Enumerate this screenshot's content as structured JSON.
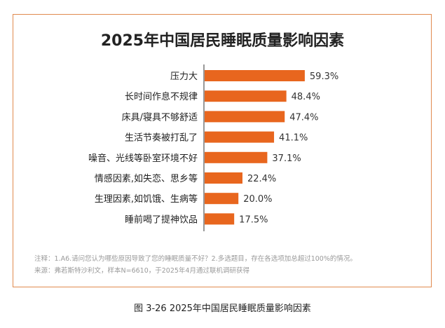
{
  "chart_data": {
    "type": "bar",
    "orientation": "horizontal",
    "title": "2025年中国居民睡眠质量影响因素",
    "categories": [
      "压力大",
      "长时间作息不规律",
      "床具/寝具不够舒适",
      "生活节奏被打乱了",
      "噪音、光线等卧室环境不好",
      "情感因素,如失恋、思乡等",
      "生理因素,如饥饿、生病等",
      "睡前喝了提神饮品"
    ],
    "values": [
      59.3,
      48.4,
      47.4,
      41.1,
      37.1,
      22.4,
      20.0,
      17.5
    ],
    "value_labels": [
      "59.3%",
      "48.4%",
      "47.4%",
      "41.1%",
      "37.1%",
      "22.4%",
      "20.0%",
      "17.5%"
    ],
    "unit": "%",
    "bar_color": "#e8661e",
    "grid": false
  },
  "notes": {
    "note": "注释：1.A6.请问您认为哪些原因导致了您的睡眠质量不好？2.多选题目，存在各选项加总超过100%的情况。",
    "source": "来源：弗若斯特沙利文，样本N=6610，于2025年4月通过联机调研获得"
  },
  "caption": "图 3-26  2025年中国居民睡眠质量影响因素"
}
